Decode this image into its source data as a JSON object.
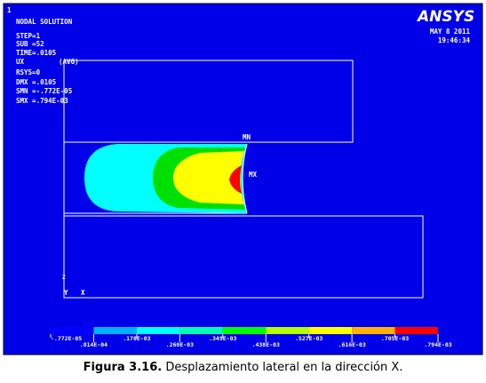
{
  "window": {
    "number": "1",
    "info": [
      "NODAL SOLUTION",
      "STEP=1",
      "SUB =52",
      "TIME=.0105",
      "UX",
      "(AVG)",
      "RSYS=0",
      "DMX =.0105",
      "SMN =-.772E-05",
      "SMX =.794E-03"
    ],
    "logo": "ANSYS",
    "date": "MAY  8 2011",
    "time": "19:46:34",
    "min_label": "MN",
    "max_label": "MX",
    "axis_y": "Y",
    "axis_x": "X",
    "axis_z": "Z"
  },
  "legend": {
    "labels": [
      "-.772E-05",
      ".814E-04",
      ".170E-03",
      ".260E-03",
      ".349E-03",
      ".438E-03",
      ".527E-03",
      ".616E-03",
      ".705E-03",
      ".794E-03"
    ]
  },
  "caption": {
    "label": "Figura 3.16.",
    "text": "Desplazamiento lateral en la dirección X."
  }
}
